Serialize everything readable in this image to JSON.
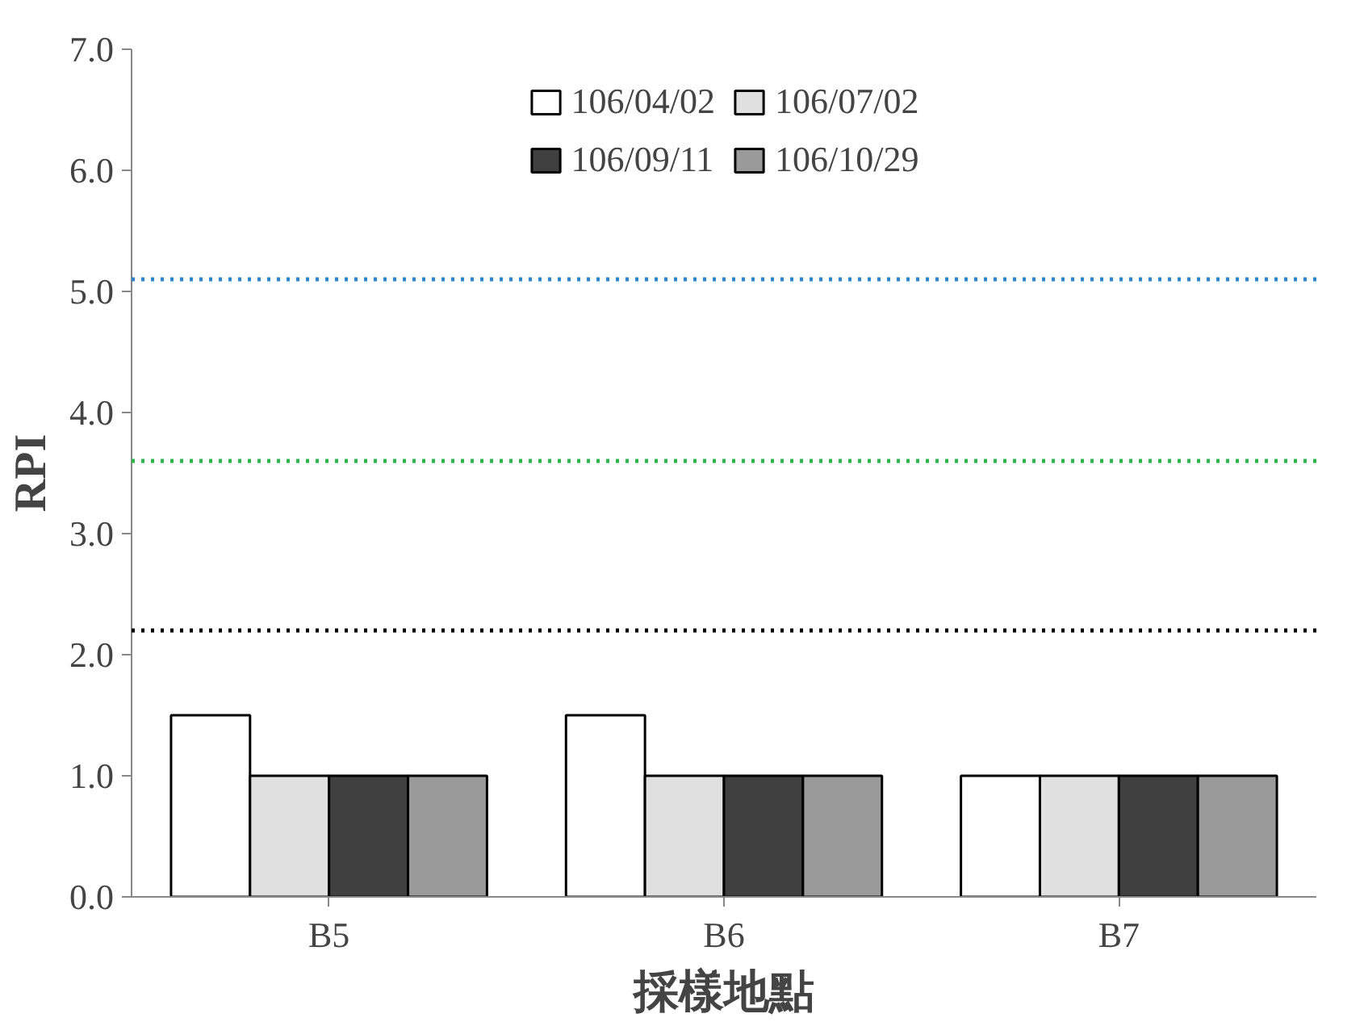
{
  "chart_data": {
    "type": "bar",
    "xlabel": "採樣地點",
    "ylabel": "RPI",
    "categories": [
      "B5",
      "B6",
      "B7"
    ],
    "series": [
      {
        "name": "106/04/02",
        "color": "#ffffff",
        "values": [
          1.5,
          1.5,
          1.0
        ]
      },
      {
        "name": "106/07/02",
        "color": "#e0e0e0",
        "values": [
          1.0,
          1.0,
          1.0
        ]
      },
      {
        "name": "106/09/11",
        "color": "#404040",
        "values": [
          1.0,
          1.0,
          1.0
        ]
      },
      {
        "name": "106/10/29",
        "color": "#9a9a9a",
        "values": [
          1.0,
          1.0,
          1.0
        ]
      }
    ],
    "ylim": [
      0,
      7
    ],
    "yticks": [
      {
        "value": 0,
        "label": "0.0"
      },
      {
        "value": 1,
        "label": "1.0"
      },
      {
        "value": 2,
        "label": "2.0"
      },
      {
        "value": 3,
        "label": "3.0"
      },
      {
        "value": 4,
        "label": "4.0"
      },
      {
        "value": 5,
        "label": "5.0"
      },
      {
        "value": 6,
        "label": "6.0"
      },
      {
        "value": 7,
        "label": "7.0"
      }
    ],
    "ref_lines": [
      {
        "axis": "y",
        "value": 5.1,
        "color": "#2e86c8",
        "line_style": "dotted"
      },
      {
        "axis": "y",
        "value": 3.6,
        "color": "#2cb34a",
        "line_style": "dotted"
      },
      {
        "axis": "y",
        "value": 2.2,
        "color": "#000000",
        "line_style": "dotted"
      }
    ],
    "grid": false,
    "legend": "top"
  }
}
